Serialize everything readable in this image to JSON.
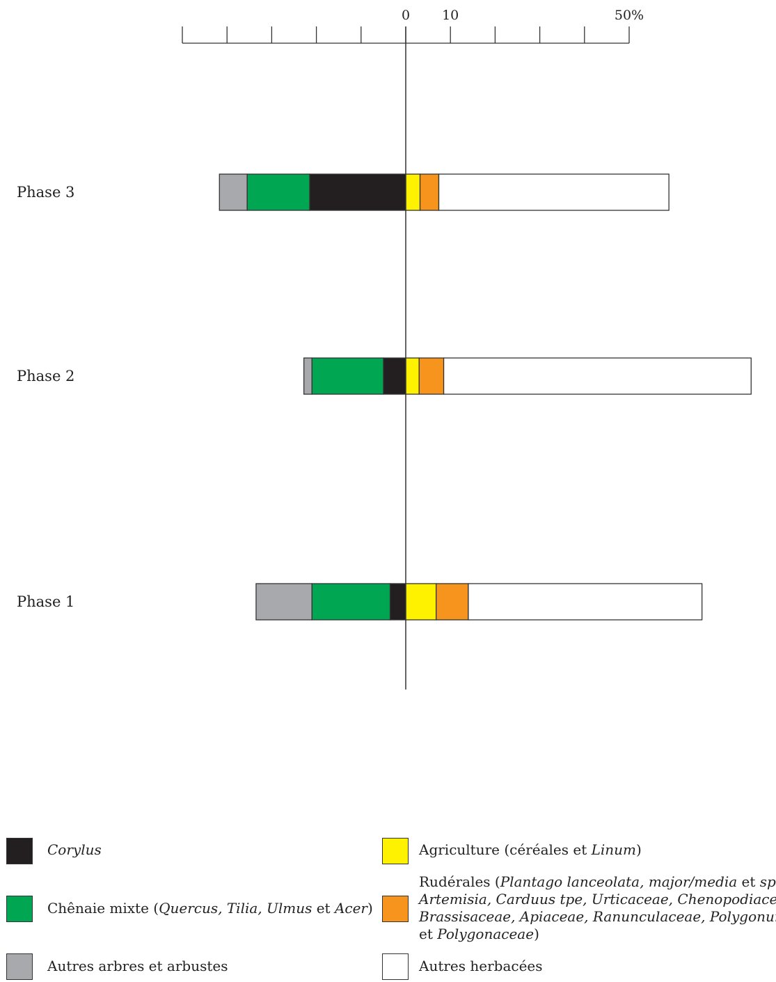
{
  "chart_data": {
    "type": "bar",
    "orientation": "horizontal-stacked-diverging",
    "xlim": [
      -50,
      50
    ],
    "ticks": [
      {
        "value": 0,
        "label": "0"
      },
      {
        "value": 10,
        "label": "10"
      },
      {
        "value": 50,
        "label": "50%"
      }
    ],
    "minor_ticks": [
      -50,
      -40,
      -30,
      -20,
      -10,
      0,
      10,
      20,
      30,
      40,
      50
    ],
    "grid": false,
    "categories": [
      "Phase 3",
      "Phase 2",
      "Phase 1"
    ],
    "series": [
      {
        "key": "autres_arbres",
        "side": "left",
        "color": "#a7a9ac",
        "values": [
          6.2,
          1.8,
          12.5
        ]
      },
      {
        "key": "chenaie",
        "side": "left",
        "color": "#00a651",
        "values": [
          14.0,
          16.0,
          17.5
        ]
      },
      {
        "key": "corylus",
        "side": "left",
        "color": "#231f20",
        "values": [
          21.5,
          5.0,
          3.5
        ]
      },
      {
        "key": "agriculture",
        "side": "right",
        "color": "#fff200",
        "values": [
          3.2,
          3.0,
          6.8
        ]
      },
      {
        "key": "ruderales",
        "side": "right",
        "color": "#f7941d",
        "values": [
          4.2,
          5.5,
          7.2
        ]
      },
      {
        "key": "autres_herbacees",
        "side": "right",
        "color": "#ffffff",
        "values": [
          51.5,
          68.8,
          52.3
        ]
      }
    ]
  },
  "legend": {
    "corylus": {
      "parts": [
        {
          "t": "Corylus",
          "i": true
        }
      ]
    },
    "chenaie": {
      "parts": [
        {
          "t": "Chênaie mixte (",
          "i": false
        },
        {
          "t": "Quercus, Tilia, Ulmus",
          "i": true
        },
        {
          "t": " et ",
          "i": false
        },
        {
          "t": "Acer",
          "i": true
        },
        {
          "t": ")",
          "i": false
        }
      ]
    },
    "autres_arbres": {
      "parts": [
        {
          "t": "Autres arbres et arbustes",
          "i": false
        }
      ]
    },
    "agriculture": {
      "parts": [
        {
          "t": "Agriculture (céréales et ",
          "i": false
        },
        {
          "t": "Linum",
          "i": true
        },
        {
          "t": ")",
          "i": false
        }
      ]
    },
    "ruderales": {
      "lines": [
        [
          {
            "t": "Rudérales (",
            "i": false
          },
          {
            "t": "Plantago lanceolata, major/media",
            "i": true
          },
          {
            "t": " et ",
            "i": false
          },
          {
            "t": "sp.,",
            "i": true
          }
        ],
        [
          {
            "t": "Artemisia, Carduus tpe, Urticaceae, Chenopodiaceae,",
            "i": true
          }
        ],
        [
          {
            "t": "Brassisaceae, Apiaceae, Ranunculaceae, Polygonum sp.",
            "i": true
          }
        ],
        [
          {
            "t": "et ",
            "i": false
          },
          {
            "t": "Polygonaceae",
            "i": true
          },
          {
            "t": ")",
            "i": false
          }
        ]
      ]
    },
    "autres_herbacees": {
      "parts": [
        {
          "t": "Autres herbacées",
          "i": false
        }
      ]
    }
  }
}
